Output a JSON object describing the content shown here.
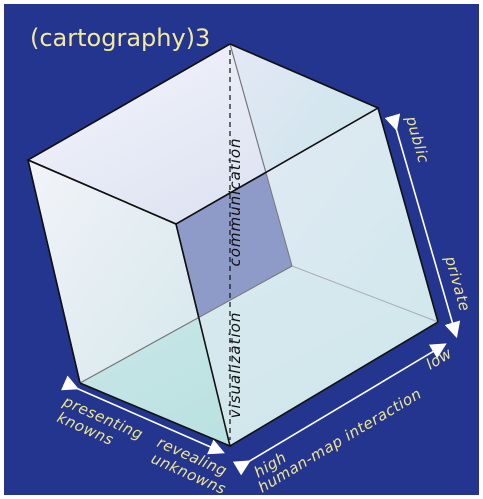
{
  "title": "(cartography)3",
  "axes": {
    "vertical_axis_top": "communication",
    "vertical_axis_bottom": "visualization",
    "right_top": "public",
    "right_bottom": "private",
    "bottom_right_low": "low",
    "bottom_right_high": "high",
    "bottom_right_label": "human-map interaction",
    "left_top_line1": "presenting",
    "left_top_line2": "knowns",
    "left_bottom_line1": "revealing",
    "left_bottom_line2": "unknowns"
  },
  "colors": {
    "background": "#23358f",
    "label_text": "#efe58f",
    "title_text": "#f3ea9a",
    "cube_edge": "#111111",
    "arrow": "#ffffff"
  }
}
